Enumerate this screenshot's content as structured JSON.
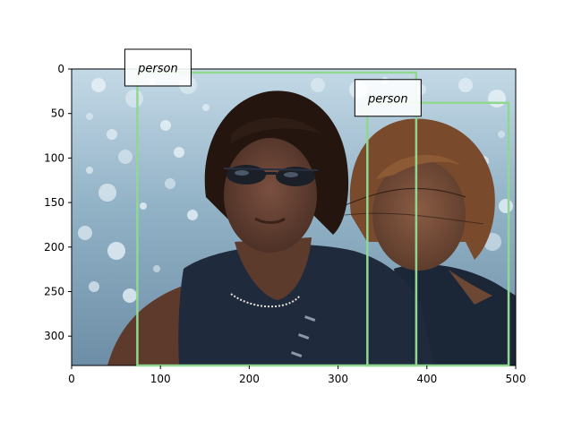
{
  "figure": {
    "image_width": 500,
    "image_height": 333,
    "colors": {
      "sky_top": "#b9d2e2",
      "water": "#7f9fb5",
      "sparkle": "#e8f2f8",
      "skin_left": "#5a3a2e",
      "skin_right": "#6b4734",
      "hair_left": "#2a1a14",
      "hair_right": "#7a4a2c",
      "vest": "#1e2a3a",
      "box": "#90d890",
      "label_bg": "#ffffff"
    },
    "x_ticks": [
      {
        "label": "0",
        "value": 0
      },
      {
        "label": "100",
        "value": 100
      },
      {
        "label": "200",
        "value": 200
      },
      {
        "label": "300",
        "value": 300
      },
      {
        "label": "400",
        "value": 400
      },
      {
        "label": "500",
        "value": 500
      }
    ],
    "y_ticks": [
      {
        "label": "0",
        "value": 0
      },
      {
        "label": "50",
        "value": 50
      },
      {
        "label": "100",
        "value": 100
      },
      {
        "label": "150",
        "value": 150
      },
      {
        "label": "200",
        "value": 200
      },
      {
        "label": "250",
        "value": 250
      },
      {
        "label": "300",
        "value": 300
      }
    ],
    "detections": [
      {
        "label": "person",
        "x1": 74,
        "y1": 4,
        "x2": 388,
        "y2": 333
      },
      {
        "label": "person",
        "x1": 333,
        "y1": 38,
        "x2": 492,
        "y2": 333
      }
    ]
  }
}
